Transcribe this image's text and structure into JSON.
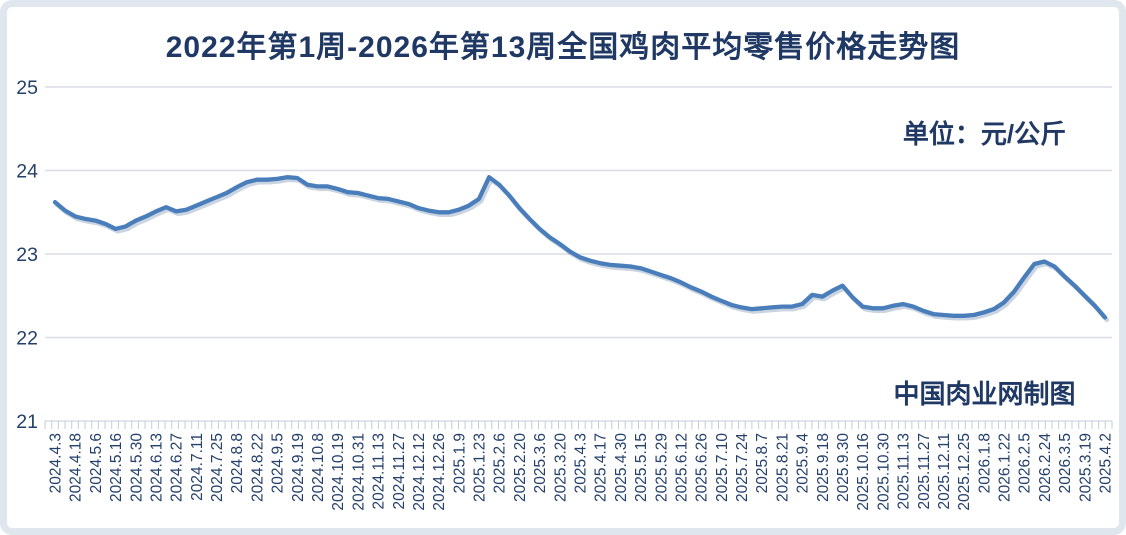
{
  "colors": {
    "title_text": "#1f3864",
    "axis_text": "#24406b",
    "line": "#4a7ebb",
    "line_shadow": "rgba(84,115,160,0.30)",
    "gridline": "#d9dee6",
    "tick": "#c3ccd8",
    "frame_border": "#e0e6ee",
    "background": "#ffffff"
  },
  "chart_data": {
    "type": "line",
    "title": "2022年第1周-2026年第13周全国鸡肉平均零售价格走势图",
    "unit_label": "单位：元/公斤",
    "credit": "中国肉业网制图",
    "xlabel": "",
    "ylabel": "",
    "ylim": [
      21,
      25
    ],
    "yticks": [
      21,
      22,
      23,
      24,
      25
    ],
    "grid": "horizontal",
    "legend": "none",
    "x_label_rotation": -90,
    "points_per_label_interval": 2,
    "x_labels": [
      "2024.4.3",
      "2024.4.18",
      "2024.5.6",
      "2024.5.16",
      "2024.5.30",
      "2024.6.13",
      "2024.6.27",
      "2024.7.11",
      "2024.7.25",
      "2024.8.8",
      "2024.8.22",
      "2024.9.5",
      "2024.9.19",
      "2024.10.8",
      "2024.10.19",
      "2024.10.31",
      "2024.11.13",
      "2024.11.27",
      "2024.12.12",
      "2024.12.26",
      "2025.1.9",
      "2025.1.23",
      "2025.2.6",
      "2025.2.20",
      "2025.3.6",
      "2025.3.20",
      "2025.4.3",
      "2025.4.17",
      "2025.4.30",
      "2025.5.15",
      "2025.5.29",
      "2025.6.12",
      "2025.6.26",
      "2025.7.10",
      "2025.7.24",
      "2025.8.7",
      "2025.8.21",
      "2025.9.4",
      "2025.9.18",
      "2025.9.30",
      "2025.10.16",
      "2025.10.30",
      "2025.11.13",
      "2025.11.27",
      "2025.12.11",
      "2025.12.25",
      "2026.1.8",
      "2026.1.22",
      "2026.2.5",
      "2026.2.24",
      "2026.3.5",
      "2025.3.19",
      "2025.4.2"
    ],
    "values": [
      23.62,
      23.52,
      23.45,
      23.42,
      23.4,
      23.36,
      23.3,
      23.33,
      23.4,
      23.45,
      23.51,
      23.56,
      23.51,
      23.53,
      23.58,
      23.63,
      23.68,
      23.73,
      23.8,
      23.86,
      23.89,
      23.89,
      23.9,
      23.92,
      23.91,
      23.83,
      23.81,
      23.81,
      23.78,
      23.74,
      23.73,
      23.7,
      23.67,
      23.66,
      23.63,
      23.6,
      23.55,
      23.52,
      23.5,
      23.5,
      23.53,
      23.58,
      23.66,
      23.92,
      23.83,
      23.7,
      23.55,
      23.42,
      23.3,
      23.2,
      23.12,
      23.03,
      22.96,
      22.92,
      22.89,
      22.87,
      22.86,
      22.85,
      22.83,
      22.79,
      22.75,
      22.71,
      22.66,
      22.6,
      22.55,
      22.49,
      22.44,
      22.39,
      22.36,
      22.34,
      22.35,
      22.36,
      22.37,
      22.37,
      22.4,
      22.51,
      22.49,
      22.56,
      22.62,
      22.48,
      22.37,
      22.35,
      22.35,
      22.38,
      22.4,
      22.37,
      22.32,
      22.28,
      22.27,
      22.26,
      22.26,
      22.27,
      22.3,
      22.34,
      22.42,
      22.55,
      22.72,
      22.88,
      22.91,
      22.85,
      22.73,
      22.62,
      22.5,
      22.38,
      22.24
    ]
  }
}
